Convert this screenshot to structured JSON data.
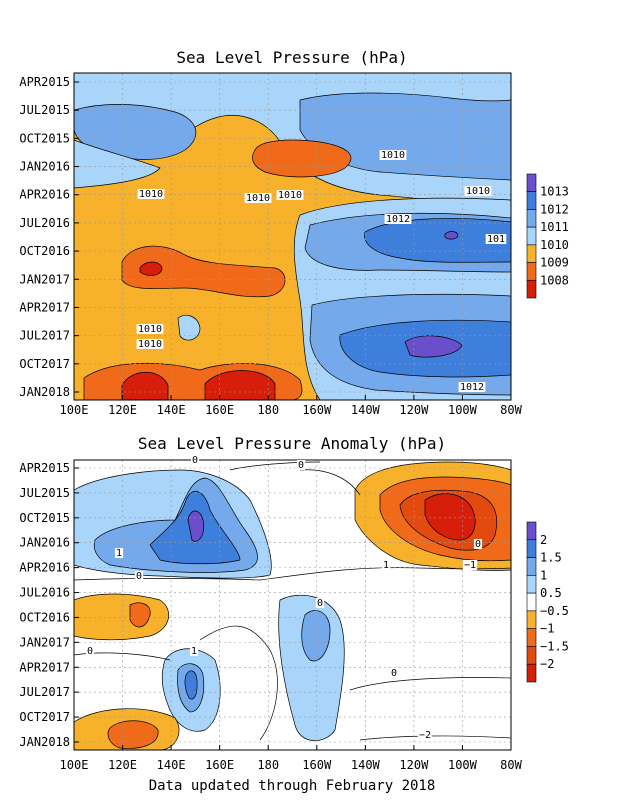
{
  "chart_data": [
    {
      "type": "heatmap",
      "title": "Sea Level Pressure (hPa)",
      "xlabel": "",
      "ylabel": "",
      "x_ticks": [
        "100E",
        "120E",
        "140E",
        "160E",
        "180",
        "160W",
        "140W",
        "120W",
        "100W",
        "80W"
      ],
      "y_ticks": [
        "APR2015",
        "JUL2015",
        "OCT2015",
        "JAN2016",
        "APR2016",
        "JUL2016",
        "OCT2016",
        "JAN2017",
        "APR2017",
        "JUL2017",
        "OCT2017",
        "JAN2018"
      ],
      "legend": {
        "placement": "right",
        "labels": [
          "1013",
          "1012",
          "1011",
          "1010",
          "1009",
          "1008"
        ],
        "colors": [
          "#6a4fcc",
          "#3f7fdc",
          "#74a9ec",
          "#a9d5fa",
          "#f7b12a",
          "#f06a1a",
          "#d61e0a"
        ]
      },
      "contour_labels": [
        "1010",
        "1010",
        "1010",
        "1010",
        "1010",
        "1012",
        "1010",
        "1010",
        "1010",
        "1012",
        "101"
      ],
      "grid": true
    },
    {
      "type": "heatmap",
      "title": "Sea Level Pressure Anomaly (hPa)",
      "xlabel": "",
      "ylabel": "",
      "x_ticks": [
        "100E",
        "120E",
        "140E",
        "160E",
        "180",
        "160W",
        "140W",
        "120W",
        "100W",
        "80W"
      ],
      "y_ticks": [
        "APR2015",
        "JUL2015",
        "OCT2015",
        "JAN2016",
        "APR2016",
        "JUL2016",
        "OCT2016",
        "JAN2017",
        "APR2017",
        "JUL2017",
        "OCT2017",
        "JAN2018"
      ],
      "legend": {
        "placement": "right",
        "labels": [
          "2",
          "1.5",
          "1",
          "0.5",
          "−0.5",
          "−1",
          "−1.5",
          "−2"
        ],
        "colors": [
          "#6a4fcc",
          "#3f7fdc",
          "#74a9ec",
          "#a9d5fa",
          "#ffffff",
          "#f7b12a",
          "#f06a1a",
          "#e24a10",
          "#d61e0a"
        ]
      },
      "contour_labels": [
        "0",
        "0",
        "1",
        "0",
        "1",
        "0",
        "0",
        "0",
        "1",
        "0",
        "−1",
        "−2"
      ],
      "grid": true
    }
  ],
  "footer": "Data updated through February 2018"
}
